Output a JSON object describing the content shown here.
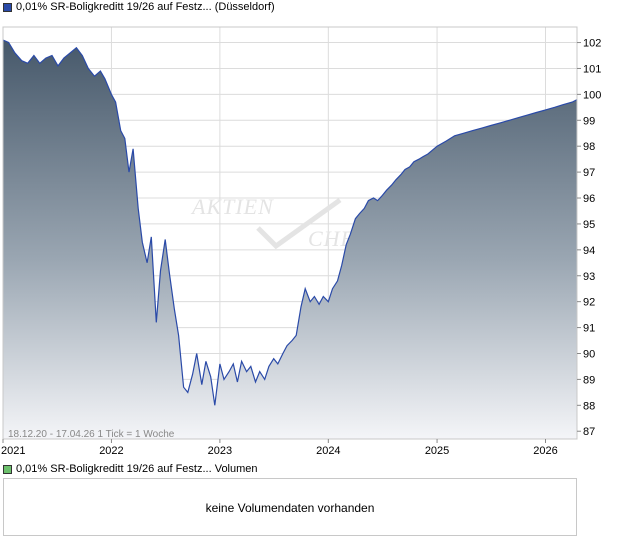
{
  "legend": {
    "main": {
      "label": "0,01% SR-Boligkreditt 19/26 auf Festz... (Düsseldorf)",
      "color": "#2a4aa8"
    },
    "volume": {
      "label": "0,01% SR-Boligkreditt 19/26 auf Festz... Volumen",
      "color": "#6cc06c"
    }
  },
  "watermark": {
    "line1": "AKTIEN",
    "line2": "CHECK"
  },
  "range_note": "18.12.20 - 17.04.26   1 Tick = 1 Woche",
  "volume_message": "keine Volumendaten vorhanden",
  "colors": {
    "line": "#2a4aa8",
    "area_top": "#4a5c6c",
    "area_bottom": "#f4f5f8",
    "grid": "#d8d8d8",
    "border": "#c8c8c8"
  },
  "chart_data": {
    "type": "area",
    "title": "",
    "xlabel": "",
    "ylabel": "",
    "x_range": [
      "2021-01-01",
      "2026-04-17"
    ],
    "ylim": [
      86.7,
      102.6
    ],
    "y_ticks": [
      87,
      88,
      89,
      90,
      91,
      92,
      93,
      94,
      95,
      96,
      97,
      98,
      99,
      100,
      101,
      102
    ],
    "x_ticks": [
      "2021",
      "2022",
      "2023",
      "2024",
      "2025",
      "2026"
    ],
    "grid": true,
    "series": [
      {
        "name": "0,01% SR-Boligkreditt 19/26 auf Festz... (Düsseldorf)",
        "x": [
          "2021-01-01",
          "2021-01-20",
          "2021-02-10",
          "2021-03-05",
          "2021-03-25",
          "2021-04-15",
          "2021-05-05",
          "2021-05-25",
          "2021-06-15",
          "2021-07-05",
          "2021-07-25",
          "2021-08-15",
          "2021-09-05",
          "2021-09-25",
          "2021-10-15",
          "2021-11-05",
          "2021-11-25",
          "2021-12-10",
          "2022-01-01",
          "2022-01-15",
          "2022-02-01",
          "2022-02-15",
          "2022-03-01",
          "2022-03-15",
          "2022-04-01",
          "2022-04-15",
          "2022-05-01",
          "2022-05-15",
          "2022-06-01",
          "2022-06-15",
          "2022-07-01",
          "2022-07-15",
          "2022-08-01",
          "2022-08-15",
          "2022-09-01",
          "2022-09-15",
          "2022-10-01",
          "2022-10-15",
          "2022-11-01",
          "2022-11-15",
          "2022-12-01",
          "2022-12-15",
          "2023-01-01",
          "2023-01-15",
          "2023-02-01",
          "2023-02-15",
          "2023-03-01",
          "2023-03-15",
          "2023-04-01",
          "2023-04-15",
          "2023-05-01",
          "2023-05-15",
          "2023-06-01",
          "2023-06-15",
          "2023-07-01",
          "2023-07-15",
          "2023-08-01",
          "2023-08-15",
          "2023-09-01",
          "2023-09-15",
          "2023-10-01",
          "2023-10-15",
          "2023-11-01",
          "2023-11-15",
          "2023-12-01",
          "2023-12-15",
          "2024-01-01",
          "2024-01-15",
          "2024-02-01",
          "2024-02-15",
          "2024-03-01",
          "2024-03-15",
          "2024-04-01",
          "2024-04-15",
          "2024-05-01",
          "2024-05-15",
          "2024-06-01",
          "2024-06-15",
          "2024-07-01",
          "2024-07-15",
          "2024-08-01",
          "2024-08-15",
          "2024-09-01",
          "2024-09-15",
          "2024-10-01",
          "2024-10-15",
          "2024-11-01",
          "2024-11-15",
          "2024-12-01",
          "2025-01-01",
          "2025-02-01",
          "2025-03-01",
          "2025-04-01",
          "2025-05-01",
          "2025-06-01",
          "2025-07-01",
          "2025-08-01",
          "2025-09-01",
          "2025-10-01",
          "2025-11-01",
          "2025-12-01",
          "2026-01-01",
          "2026-02-01",
          "2026-03-01",
          "2026-04-01",
          "2026-04-17"
        ],
        "values": [
          102.1,
          102.0,
          101.6,
          101.3,
          101.2,
          101.5,
          101.2,
          101.4,
          101.5,
          101.1,
          101.4,
          101.6,
          101.8,
          101.5,
          101.0,
          100.7,
          100.9,
          100.6,
          100.0,
          99.7,
          98.6,
          98.3,
          97.0,
          97.9,
          95.6,
          94.3,
          93.5,
          94.5,
          91.2,
          93.2,
          94.4,
          93.1,
          91.7,
          90.7,
          88.7,
          88.5,
          89.2,
          90.0,
          88.8,
          89.7,
          89.1,
          88.0,
          89.6,
          89.0,
          89.3,
          89.6,
          88.9,
          89.7,
          89.3,
          89.5,
          88.9,
          89.3,
          89.0,
          89.5,
          89.8,
          89.6,
          90.0,
          90.3,
          90.5,
          90.7,
          91.8,
          92.5,
          92.0,
          92.2,
          91.9,
          92.2,
          92.0,
          92.5,
          92.8,
          93.4,
          94.2,
          94.6,
          95.2,
          95.4,
          95.6,
          95.9,
          96.0,
          95.9,
          96.1,
          96.3,
          96.5,
          96.7,
          96.9,
          97.1,
          97.2,
          97.4,
          97.5,
          97.6,
          97.7,
          98.0,
          98.2,
          98.4,
          98.5,
          98.6,
          98.7,
          98.8,
          98.9,
          99.0,
          99.1,
          99.2,
          99.3,
          99.4,
          99.5,
          99.6,
          99.7,
          99.8
        ]
      }
    ]
  }
}
